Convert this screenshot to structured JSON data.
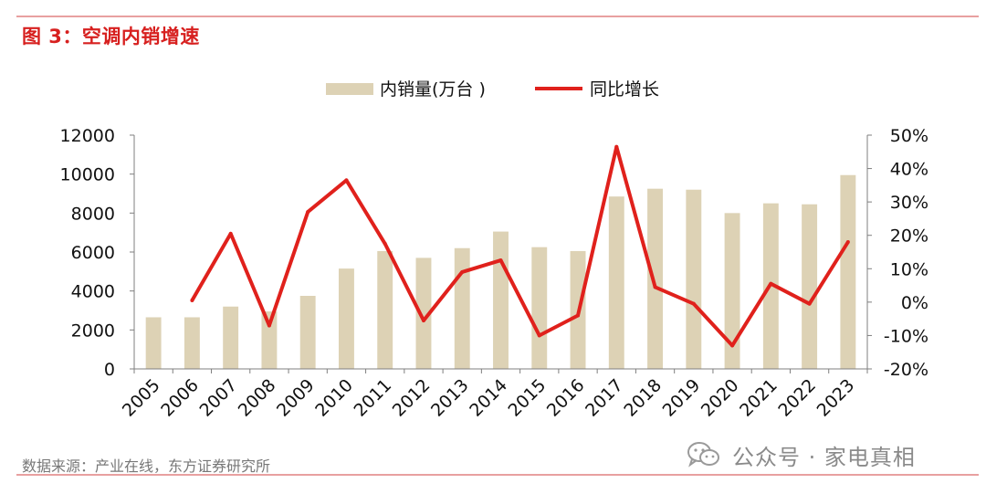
{
  "figure": {
    "title": "图 3：空调内销增速",
    "source": "数据来源：产业在线，东方证券研究所",
    "watermark": "公众号 · 家电真相",
    "watermark_icon": "wechat-icon"
  },
  "colors": {
    "bar": "#ddd2b5",
    "line": "#e0211c",
    "title": "#d7201f",
    "rule": "#e8a0a0"
  },
  "chart_data": {
    "type": "bar",
    "categories": [
      "2005",
      "2006",
      "2007",
      "2008",
      "2009",
      "2010",
      "2011",
      "2012",
      "2013",
      "2014",
      "2015",
      "2016",
      "2017",
      "2018",
      "2019",
      "2020",
      "2021",
      "2022",
      "2023"
    ],
    "series": [
      {
        "name": "内销量(万台 )",
        "type": "bar",
        "axis": "left",
        "values": [
          2650,
          2650,
          3200,
          2950,
          3750,
          5150,
          6050,
          5700,
          6200,
          7050,
          6250,
          6050,
          8850,
          9250,
          9200,
          8000,
          8500,
          8450,
          9950
        ]
      },
      {
        "name": "同比增长",
        "type": "line",
        "axis": "right",
        "values": [
          null,
          0.5,
          20.5,
          -7.0,
          27.0,
          36.5,
          17.5,
          -5.5,
          9.0,
          12.5,
          -10.0,
          -4.0,
          46.5,
          4.5,
          -0.5,
          -13.0,
          5.5,
          -0.5,
          18.0
        ]
      }
    ],
    "y_left": {
      "min": 0,
      "max": 12000,
      "ticks": [
        "0",
        "2000",
        "4000",
        "6000",
        "8000",
        "10000",
        "12000"
      ]
    },
    "y_right": {
      "min": -20,
      "max": 50,
      "ticks": [
        "-20%",
        "-10%",
        "0%",
        "10%",
        "20%",
        "30%",
        "40%",
        "50%"
      ]
    },
    "legend_position": "top-center",
    "grid": false
  }
}
